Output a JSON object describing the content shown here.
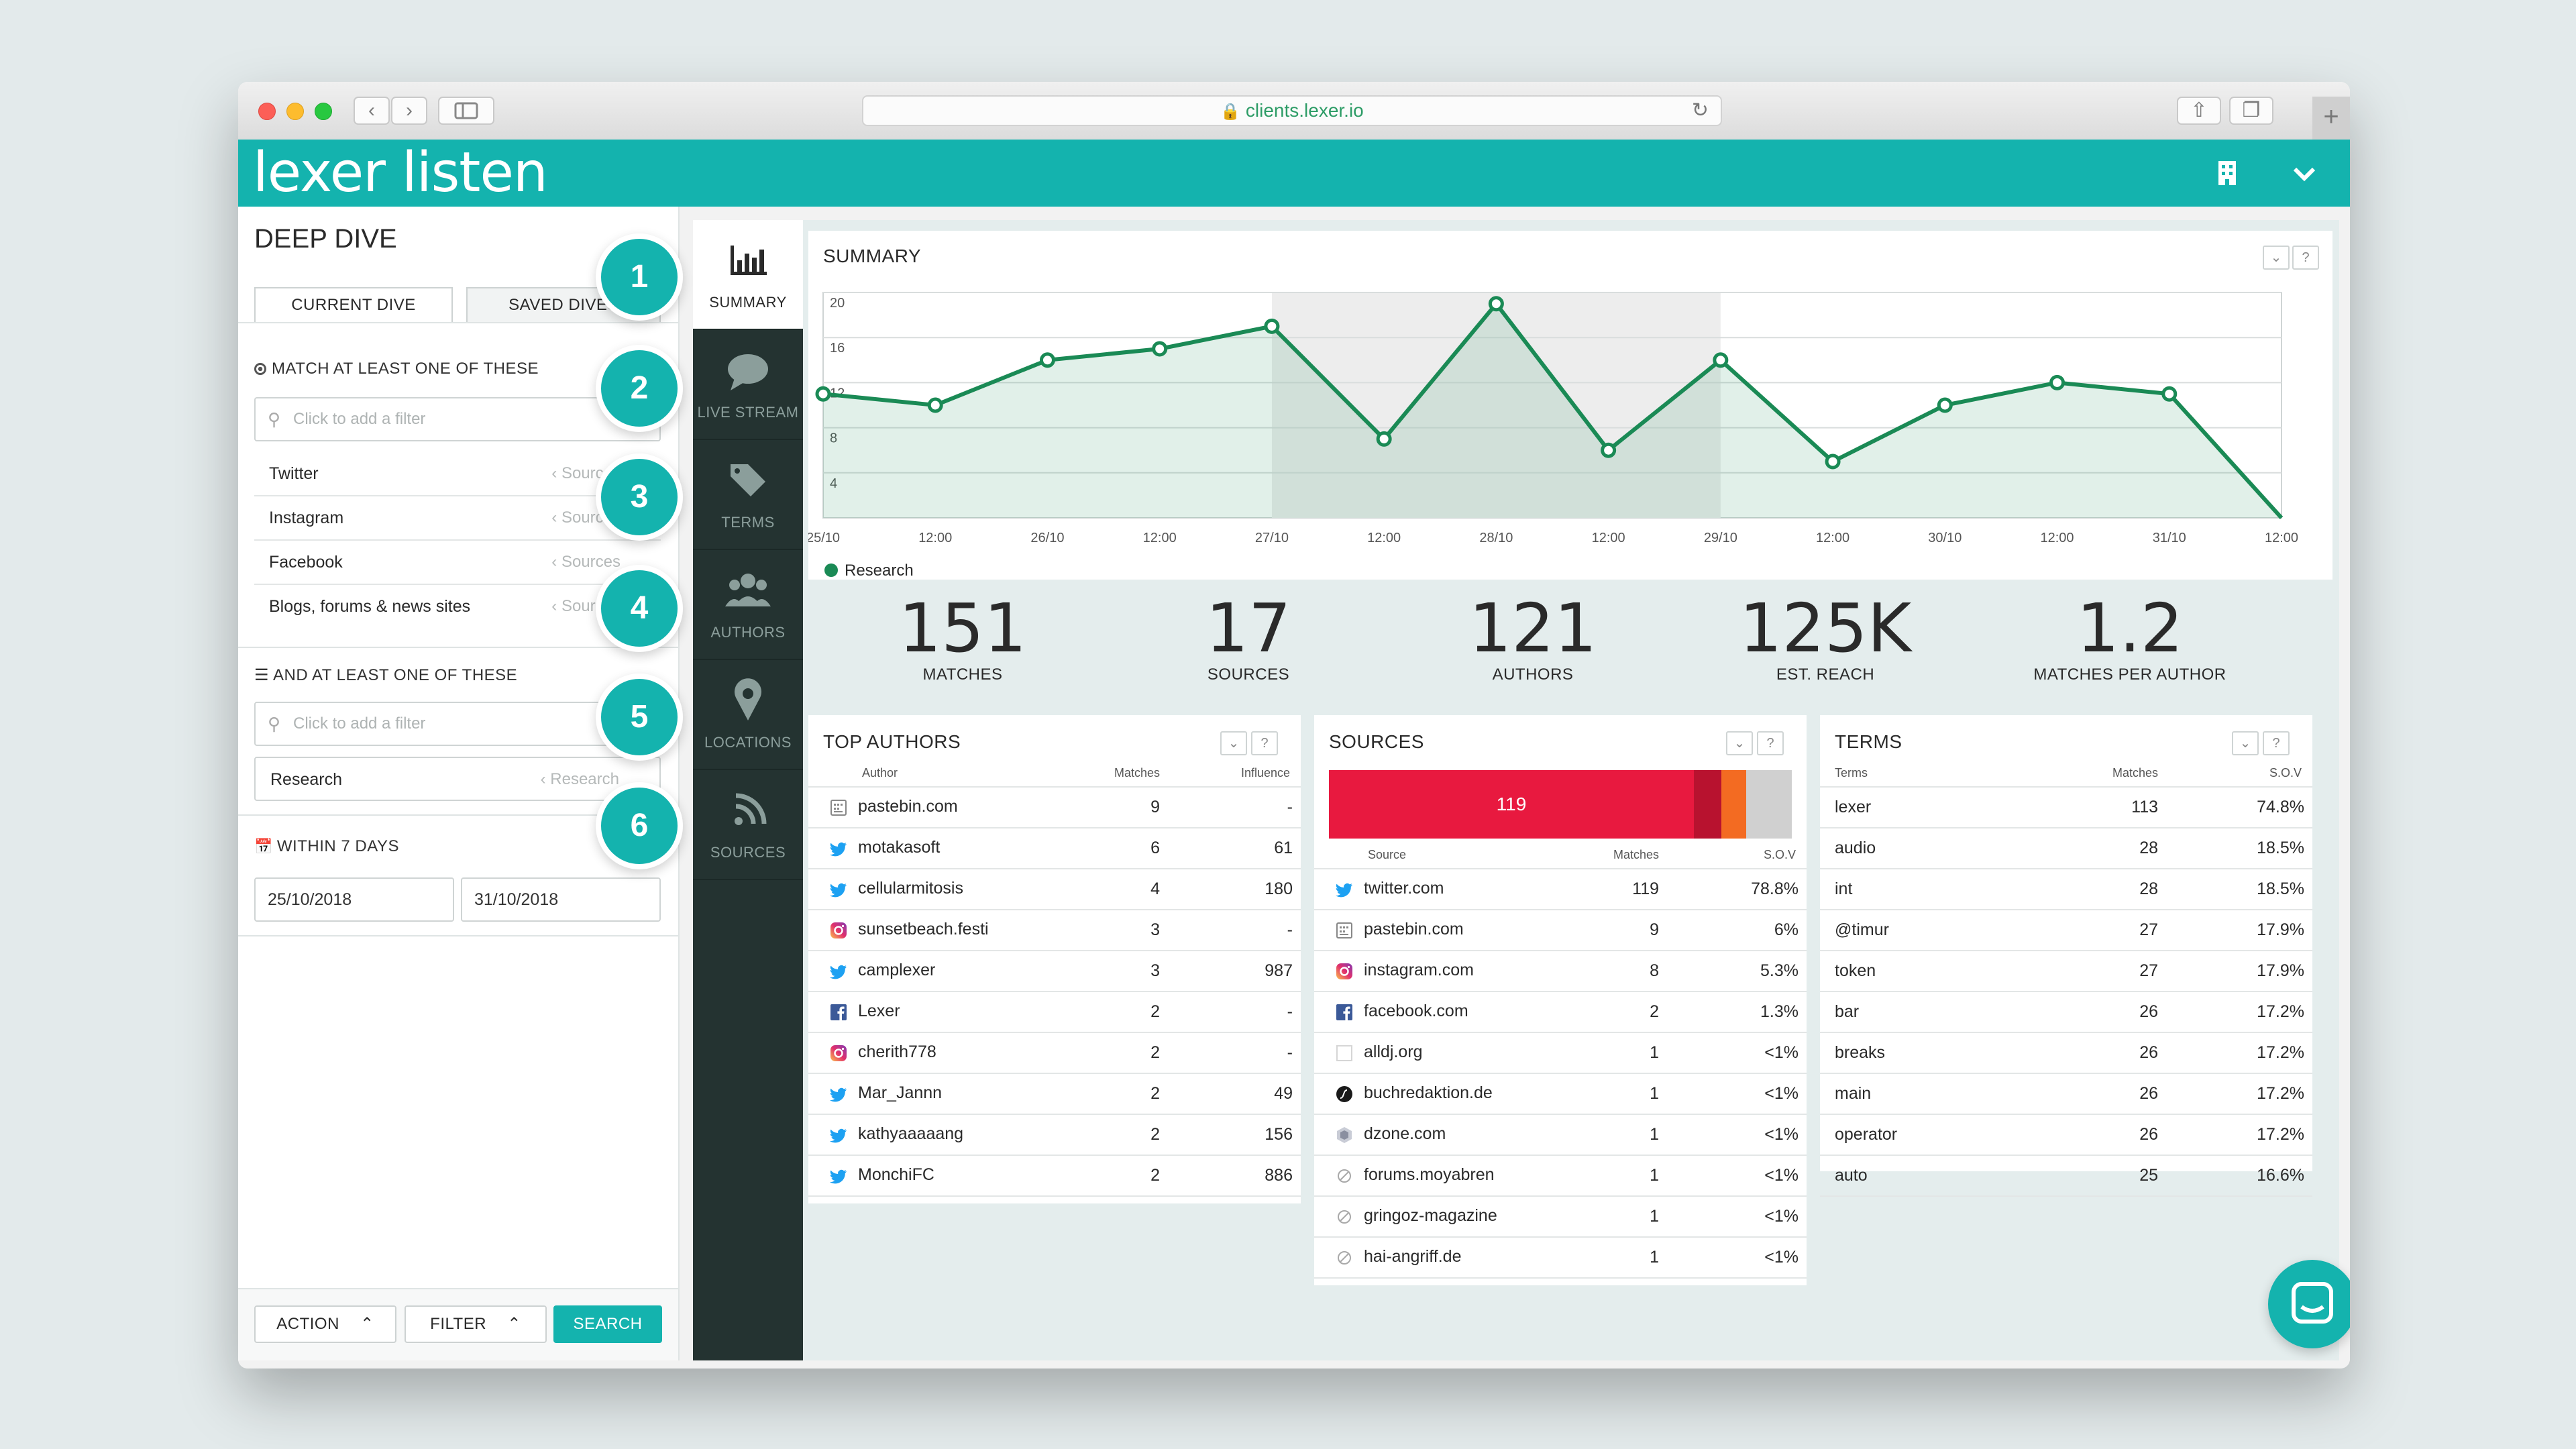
{
  "browser": {
    "url": "clients.lexer.io"
  },
  "app": {
    "logo": "lexer listen"
  },
  "left_panel": {
    "title": "DEEP DIVE",
    "tabs": [
      "CURRENT DIVE",
      "SAVED DIVES"
    ],
    "match_section": "MATCH AT LEAST ONE OF THESE",
    "and_section": "AND AT LEAST ONE OF THESE",
    "within_section": "WITHIN 7 DAYS",
    "filter_placeholder": "Click to add a filter",
    "match_filters": [
      {
        "label": "Twitter",
        "tag": "Sources"
      },
      {
        "label": "Instagram",
        "tag": "Sources"
      },
      {
        "label": "Facebook",
        "tag": "Sources"
      },
      {
        "label": "Blogs, forums & news sites",
        "tag": "Sources"
      }
    ],
    "and_filters": [
      {
        "label": "Research",
        "tag": "Research"
      }
    ],
    "date_from": "25/10/2018",
    "date_to": "31/10/2018",
    "buttons": {
      "action": "ACTION",
      "filter": "FILTER",
      "search": "SEARCH"
    }
  },
  "callouts": [
    "1",
    "2",
    "3",
    "4",
    "5",
    "6"
  ],
  "nav": [
    {
      "label": "SUMMARY",
      "icon": "bar-chart-icon",
      "active": true
    },
    {
      "label": "LIVE STREAM",
      "icon": "speech-bubble-icon",
      "active": false
    },
    {
      "label": "TERMS",
      "icon": "tags-icon",
      "active": false
    },
    {
      "label": "AUTHORS",
      "icon": "users-icon",
      "active": false
    },
    {
      "label": "LOCATIONS",
      "icon": "map-pin-icon",
      "active": false
    },
    {
      "label": "SOURCES",
      "icon": "rss-icon",
      "active": false
    }
  ],
  "summary": {
    "title": "SUMMARY",
    "btn_collapse": "⌄",
    "btn_help": "?"
  },
  "chart_data": {
    "type": "line",
    "title": "SUMMARY",
    "x_ticks": [
      "25/10",
      "12:00",
      "26/10",
      "12:00",
      "27/10",
      "12:00",
      "28/10",
      "12:00",
      "29/10",
      "12:00",
      "30/10",
      "12:00",
      "31/10",
      "12:00"
    ],
    "y_ticks": [
      "20",
      "16",
      "12",
      "8",
      "4"
    ],
    "ylim": [
      0,
      20
    ],
    "series": [
      {
        "name": "Research",
        "color": "#1a8a55",
        "values": [
          11,
          10,
          14,
          15,
          17,
          7,
          19,
          6,
          14,
          5,
          10,
          12,
          11,
          0
        ]
      }
    ],
    "highlight_range": [
      4,
      8
    ],
    "legend": "bottom-left",
    "grid": true
  },
  "stats": [
    {
      "value": "151",
      "label": "MATCHES"
    },
    {
      "value": "17",
      "label": "SOURCES"
    },
    {
      "value": "121",
      "label": "AUTHORS"
    },
    {
      "value": "125K",
      "label": "EST. REACH"
    },
    {
      "value": "1.2",
      "label": "MATCHES PER AUTHOR"
    }
  ],
  "top_authors": {
    "title": "TOP AUTHORS",
    "columns": [
      "Author",
      "Matches",
      "Influence"
    ],
    "rows": [
      {
        "icon": "pastebin-icon",
        "name": "pastebin.com",
        "matches": "9",
        "influence": "-"
      },
      {
        "icon": "twitter-icon",
        "name": "motakasoft",
        "matches": "6",
        "influence": "61"
      },
      {
        "icon": "twitter-icon",
        "name": "cellularmitosis",
        "matches": "4",
        "influence": "180"
      },
      {
        "icon": "instagram-icon",
        "name": "sunsetbeach.festi",
        "matches": "3",
        "influence": "-"
      },
      {
        "icon": "twitter-icon",
        "name": "camplexer",
        "matches": "3",
        "influence": "987"
      },
      {
        "icon": "facebook-icon",
        "name": "Lexer",
        "matches": "2",
        "influence": "-"
      },
      {
        "icon": "instagram-icon",
        "name": "cherith778",
        "matches": "2",
        "influence": "-"
      },
      {
        "icon": "twitter-icon",
        "name": "Mar_Jannn",
        "matches": "2",
        "influence": "49"
      },
      {
        "icon": "twitter-icon",
        "name": "kathyaaaaang",
        "matches": "2",
        "influence": "156"
      },
      {
        "icon": "twitter-icon",
        "name": "MonchiFC",
        "matches": "2",
        "influence": "886"
      }
    ]
  },
  "sources": {
    "title": "SOURCES",
    "bar_label": "119",
    "bar_segments": [
      {
        "value": 119,
        "color": "#e8193f"
      },
      {
        "value": 9,
        "color": "#b8122f"
      },
      {
        "value": 8,
        "color": "#f36b22"
      },
      {
        "value": 15,
        "color": "#d0d0d0"
      }
    ],
    "columns": [
      "Source",
      "Matches",
      "S.O.V"
    ],
    "rows": [
      {
        "icon": "twitter-icon",
        "name": "twitter.com",
        "matches": "119",
        "sov": "78.8%"
      },
      {
        "icon": "pastebin-icon",
        "name": "pastebin.com",
        "matches": "9",
        "sov": "6%"
      },
      {
        "icon": "instagram-icon",
        "name": "instagram.com",
        "matches": "8",
        "sov": "5.3%"
      },
      {
        "icon": "facebook-icon",
        "name": "facebook.com",
        "matches": "2",
        "sov": "1.3%"
      },
      {
        "icon": "blank-icon",
        "name": "alldj.org",
        "matches": "1",
        "sov": "<1%"
      },
      {
        "icon": "symfony-icon",
        "name": "buchredaktion.de",
        "matches": "1",
        "sov": "<1%"
      },
      {
        "icon": "dzone-icon",
        "name": "dzone.com",
        "matches": "1",
        "sov": "<1%"
      },
      {
        "icon": "no-icon",
        "name": "forums.moyabren",
        "matches": "1",
        "sov": "<1%"
      },
      {
        "icon": "no-icon",
        "name": "gringoz-magazine",
        "matches": "1",
        "sov": "<1%"
      },
      {
        "icon": "no-icon",
        "name": "hai-angriff.de",
        "matches": "1",
        "sov": "<1%"
      }
    ]
  },
  "terms": {
    "title": "TERMS",
    "columns": [
      "Terms",
      "Matches",
      "S.O.V"
    ],
    "rows": [
      {
        "term": "lexer",
        "matches": "113",
        "sov": "74.8%"
      },
      {
        "term": "audio",
        "matches": "28",
        "sov": "18.5%"
      },
      {
        "term": "int",
        "matches": "28",
        "sov": "18.5%"
      },
      {
        "term": "@timur",
        "matches": "27",
        "sov": "17.9%"
      },
      {
        "term": "token",
        "matches": "27",
        "sov": "17.9%"
      },
      {
        "term": "bar",
        "matches": "26",
        "sov": "17.2%"
      },
      {
        "term": "breaks",
        "matches": "26",
        "sov": "17.2%"
      },
      {
        "term": "main",
        "matches": "26",
        "sov": "17.2%"
      },
      {
        "term": "operator",
        "matches": "26",
        "sov": "17.2%"
      },
      {
        "term": "auto",
        "matches": "25",
        "sov": "16.6%"
      }
    ]
  }
}
